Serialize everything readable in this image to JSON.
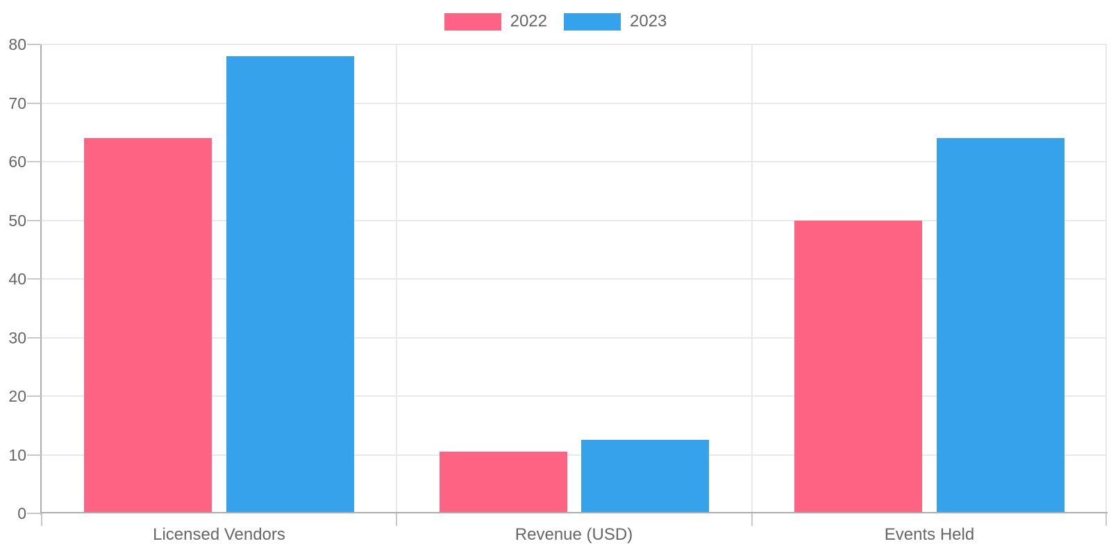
{
  "chart_data": {
    "type": "bar",
    "title": "",
    "xlabel": "",
    "ylabel": "",
    "categories": [
      "Licensed Vendors",
      "Revenue (USD)",
      "Events Held"
    ],
    "series": [
      {
        "name": "2022",
        "color": "#FF6384",
        "values": [
          64,
          10.5,
          50
        ]
      },
      {
        "name": "2023",
        "color": "#36A2EB",
        "values": [
          78,
          12.5,
          64
        ]
      }
    ],
    "ylim": [
      0,
      80
    ],
    "yticks": [
      0,
      10,
      20,
      30,
      40,
      50,
      60,
      70,
      80
    ],
    "grid": true,
    "legend_position": "top"
  },
  "colors": {
    "background": "#ffffff",
    "grid_line": "#e9e9e9",
    "axis_line": "#adadad",
    "tick_mark": "#c8c8c8",
    "label_text": "#666666"
  }
}
